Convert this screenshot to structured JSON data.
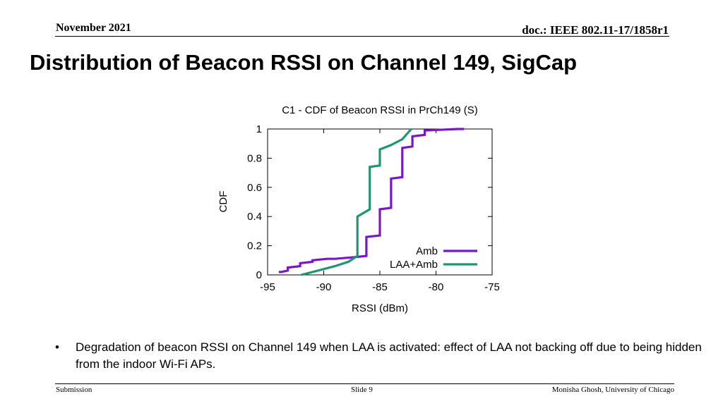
{
  "header": {
    "date": "November 2021",
    "doc": "doc.: IEEE 802.11-17/1858r1"
  },
  "slide_title": "Distribution of Beacon RSSI on Channel 149, SigCap",
  "chart_data": {
    "type": "line",
    "title": "C1 - CDF of Beacon RSSI in PrCh149 (S)",
    "xlabel": "RSSI (dBm)",
    "ylabel": "CDF",
    "xlim": [
      -95,
      -75
    ],
    "ylim": [
      0,
      1
    ],
    "xticks": [
      "-95",
      "-90",
      "-85",
      "-80",
      "-75"
    ],
    "yticks": [
      "0",
      "0.2",
      "0.4",
      "0.6",
      "0.8",
      "1"
    ],
    "grid": false,
    "legend_position": "bottom-right",
    "series": [
      {
        "name": "Amb",
        "color": "#7b16c4",
        "x": [
          -94.0,
          -93.8,
          -93.2,
          -93.2,
          -92.1,
          -92.1,
          -91.0,
          -91.0,
          -89.7,
          -89.0,
          -87.5,
          -86.2,
          -86.2,
          -85.0,
          -85.0,
          -84.0,
          -84.0,
          -83.0,
          -83.0,
          -82.1,
          -82.1,
          -81.0,
          -81.0,
          -78.0,
          -77.5
        ],
        "y": [
          0.02,
          0.02,
          0.03,
          0.05,
          0.06,
          0.08,
          0.09,
          0.1,
          0.11,
          0.11,
          0.12,
          0.13,
          0.26,
          0.27,
          0.45,
          0.46,
          0.66,
          0.67,
          0.87,
          0.88,
          0.95,
          0.96,
          0.99,
          1.0,
          1.0
        ]
      },
      {
        "name": "LAA+Amb",
        "color": "#1f9670",
        "x": [
          -92.0,
          -90.5,
          -89.0,
          -87.8,
          -87.0,
          -87.0,
          -85.9,
          -85.9,
          -85.0,
          -85.0,
          -84.0,
          -83.0,
          -82.2
        ],
        "y": [
          0.0,
          0.03,
          0.06,
          0.09,
          0.13,
          0.4,
          0.45,
          0.74,
          0.75,
          0.86,
          0.89,
          0.93,
          1.0
        ]
      }
    ]
  },
  "bullet": {
    "marker": "•",
    "text": "Degradation of beacon RSSI on Channel 149 when LAA is activated: effect of LAA not backing off due to being hidden from the indoor Wi-Fi APs."
  },
  "footer": {
    "left": "Submission",
    "center": "Slide 9",
    "right": "Monisha Ghosh, University of Chicago"
  }
}
